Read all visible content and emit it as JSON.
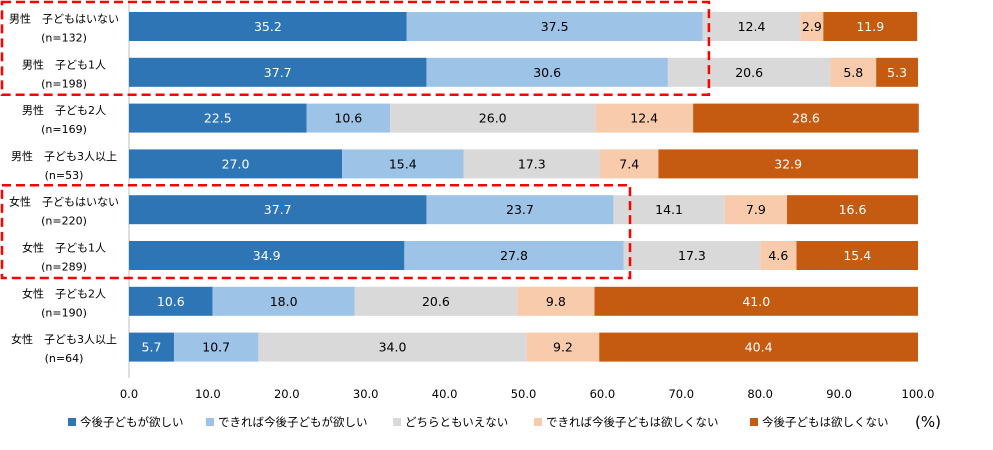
{
  "chart_data": {
    "type": "bar",
    "orientation": "horizontal",
    "stacked": true,
    "categories": [
      {
        "line1": "男性　子どもはいない",
        "line2": "(n=132)"
      },
      {
        "line1": "男性　子ども1人",
        "line2": "(n=198)"
      },
      {
        "line1": "男性　子ども2人",
        "line2": "(n=169)"
      },
      {
        "line1": "男性　子ども3人以上",
        "line2": "(n=53)"
      },
      {
        "line1": "女性　子どもはいない",
        "line2": "(n=220)"
      },
      {
        "line1": "女性　子ども1人",
        "line2": "(n=289)"
      },
      {
        "line1": "女性　子ども2人",
        "line2": "(n=190)"
      },
      {
        "line1": "女性　子ども3人以上",
        "line2": "(n=64)"
      }
    ],
    "series": [
      {
        "name": "今後子どもが欲しい",
        "color": "#2E75B6",
        "label_color": "#ffffff",
        "values": [
          35.2,
          37.7,
          22.5,
          27.0,
          37.7,
          34.9,
          10.6,
          5.7
        ]
      },
      {
        "name": "できれば今後子どもが欲しい",
        "color": "#9DC3E6",
        "label_color": "#000000",
        "values": [
          37.5,
          30.6,
          10.6,
          15.4,
          23.7,
          27.8,
          18.0,
          10.7
        ]
      },
      {
        "name": "どちらともいえない",
        "color": "#D9D9D9",
        "label_color": "#000000",
        "values": [
          12.4,
          20.6,
          26.0,
          17.3,
          14.1,
          17.3,
          20.6,
          34.0
        ]
      },
      {
        "name": "できれば今後子どもは欲しくない",
        "color": "#F8CBAD",
        "label_color": "#000000",
        "values": [
          2.9,
          5.8,
          12.4,
          7.4,
          7.9,
          4.6,
          9.8,
          9.2
        ]
      },
      {
        "name": "今後子どもは欲しくない",
        "color": "#C55A11",
        "label_color": "#ffffff",
        "values": [
          11.9,
          5.3,
          28.6,
          32.9,
          16.6,
          15.4,
          41.0,
          40.4
        ]
      }
    ],
    "xlim": [
      0,
      100
    ],
    "xticks": [
      "0.0",
      "10.0",
      "20.0",
      "30.0",
      "40.0",
      "50.0",
      "60.0",
      "70.0",
      "80.0",
      "90.0",
      "100.0"
    ],
    "xlabel": "",
    "ylabel": "",
    "unit_label": "(%)",
    "legend_position": "bottom",
    "highlight_boxes": [
      {
        "from_row": 0,
        "to_row": 1,
        "to_value": 73.5,
        "color": "#FF0000"
      },
      {
        "from_row": 4,
        "to_row": 5,
        "to_value": 63.5,
        "color": "#FF0000"
      }
    ]
  }
}
